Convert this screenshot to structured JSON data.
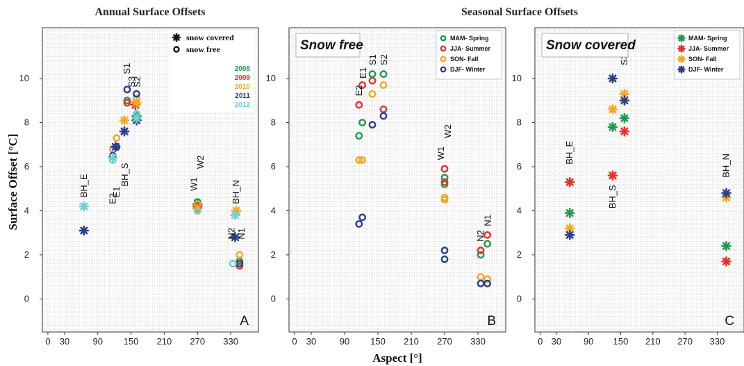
{
  "figure": {
    "title_left": "Annual Surface Offsets",
    "title_right": "Seasonal Surface Offsets",
    "ylabel": "Surface Offset [°C]",
    "xlabel": "Aspect [°]"
  },
  "colors": {
    "2008": "#1e9a4a",
    "2009": "#e8302a",
    "2010": "#f5a623",
    "2011": "#2b3d8f",
    "2012": "#6fd0d6",
    "spring": "#1e9a4a",
    "summer": "#e8302a",
    "fall": "#f5a623",
    "winter": "#2b3d8f"
  },
  "chart_data": [
    {
      "type": "scatter",
      "panel": "A",
      "title": "Annual Surface Offsets",
      "ylabel": "Surface Offset [°C]",
      "xlim": [
        -10,
        380
      ],
      "ylim": [
        -1.5,
        12.3
      ],
      "x_ticks": [
        0,
        30,
        90,
        150,
        210,
        270,
        330
      ],
      "y_ticks": [
        0,
        2,
        4,
        6,
        8,
        10
      ],
      "grid": true,
      "legend": {
        "position": "top-right",
        "markers": [
          {
            "label": "snow covered",
            "marker": "star"
          },
          {
            "label": "snow free",
            "marker": "circle"
          }
        ],
        "years": [
          {
            "label": "2008",
            "color": "#1e9a4a"
          },
          {
            "label": "2009",
            "color": "#e8302a"
          },
          {
            "label": "2010",
            "color": "#f5a623"
          },
          {
            "label": "2011",
            "color": "#2b3d8f"
          },
          {
            "label": "2012",
            "color": "#6fd0d6"
          }
        ]
      },
      "series": [
        {
          "name": "2008",
          "color": "#1e9a4a",
          "snow_free": [
            [
              143,
              9.0
            ],
            [
              270,
              4.4
            ],
            [
              334,
              1.6
            ],
            [
              346,
              1.7
            ]
          ],
          "snow_covered": [
            [
              160,
              8.3
            ],
            [
              270,
              4.3
            ]
          ]
        },
        {
          "name": "2009",
          "color": "#e8302a",
          "snow_free": [
            [
              143,
              8.9
            ],
            [
              270,
              4.1
            ],
            [
              346,
              1.5
            ]
          ],
          "snow_covered": [
            [
              158,
              8.8
            ],
            [
              270,
              4.2
            ]
          ]
        },
        {
          "name": "2010",
          "color": "#f5a623",
          "snow_free": [
            [
              117,
              6.8
            ],
            [
              124,
              7.3
            ],
            [
              160,
              9.1
            ],
            [
              270,
              4.3
            ],
            [
              346,
              2.0
            ]
          ],
          "snow_covered": [
            [
              138,
              8.1
            ],
            [
              160,
              8.9
            ],
            [
              340,
              4.0
            ],
            [
              270,
              4.1
            ]
          ]
        },
        {
          "name": "2011",
          "color": "#2b3d8f",
          "snow_free": [
            [
              117,
              6.5
            ],
            [
              124,
              6.9
            ],
            [
              143,
              9.5
            ],
            [
              160,
              9.3
            ],
            [
              346,
              1.6
            ]
          ],
          "snow_covered": [
            [
              65,
              3.1
            ],
            [
              122,
              6.9
            ],
            [
              138,
              7.6
            ],
            [
              160,
              8.1
            ],
            [
              338,
              2.8
            ]
          ]
        },
        {
          "name": "2012",
          "color": "#6fd0d6",
          "snow_free": [
            [
              117,
              6.3
            ],
            [
              160,
              8.4
            ],
            [
              270,
              4.0
            ],
            [
              334,
              1.6
            ]
          ],
          "snow_covered": [
            [
              65,
              4.2
            ],
            [
              117,
              6.4
            ],
            [
              160,
              8.2
            ],
            [
              338,
              3.8
            ]
          ]
        }
      ],
      "annotations": [
        {
          "text": "BH_E",
          "x": 65,
          "y": 4.6,
          "rotated": true
        },
        {
          "text": "E2",
          "x": 117,
          "y": 4.3,
          "rotated": true
        },
        {
          "text": "E1",
          "x": 124,
          "y": 4.6,
          "rotated": true
        },
        {
          "text": "BH_S",
          "x": 139,
          "y": 5.1,
          "rotated": true
        },
        {
          "text": "S1",
          "x": 143,
          "y": 10.2,
          "rotated": true
        },
        {
          "text": "S3",
          "x": 152,
          "y": 9.6,
          "rotated": true
        },
        {
          "text": "S2",
          "x": 162,
          "y": 9.6,
          "rotated": true
        },
        {
          "text": "W1",
          "x": 264,
          "y": 4.9,
          "rotated": true
        },
        {
          "text": "W2",
          "x": 276,
          "y": 5.9,
          "rotated": true
        },
        {
          "text": "N2",
          "x": 332,
          "y": 2.7,
          "rotated": true
        },
        {
          "text": "BH_N",
          "x": 340,
          "y": 4.3,
          "rotated": true
        },
        {
          "text": "N1",
          "x": 350,
          "y": 2.7,
          "rotated": true
        }
      ],
      "panel_letter": "A"
    },
    {
      "type": "scatter",
      "panel": "B",
      "title": "Seasonal Surface Offsets",
      "label": "Snow free",
      "xlim": [
        -10,
        380
      ],
      "ylim": [
        -1.5,
        12.3
      ],
      "x_ticks": [
        0,
        30,
        90,
        150,
        210,
        270,
        330
      ],
      "y_ticks": [
        0,
        2,
        4,
        6,
        8,
        10
      ],
      "grid": true,
      "legend": {
        "position": "top-right",
        "items": [
          {
            "label": "MAM- Spring",
            "color": "#1e9a4a",
            "marker": "circle"
          },
          {
            "label": "JJA- Summer",
            "color": "#e8302a",
            "marker": "circle"
          },
          {
            "label": "SON- Fall",
            "color": "#f5a623",
            "marker": "circle"
          },
          {
            "label": "DJF- Winter",
            "color": "#2b3d8f",
            "marker": "circle"
          }
        ]
      },
      "series": [
        {
          "name": "MAM- Spring",
          "color": "#1e9a4a",
          "marker": "circle",
          "points": [
            [
              116,
              7.4
            ],
            [
              122,
              8.0
            ],
            [
              140,
              10.2
            ],
            [
              160,
              10.2
            ],
            [
              270,
              5.5
            ],
            [
              270,
              5.2
            ],
            [
              335,
              2.0
            ],
            [
              347,
              2.5
            ]
          ]
        },
        {
          "name": "JJA- Summer",
          "color": "#e8302a",
          "marker": "circle",
          "points": [
            [
              116,
              8.8
            ],
            [
              122,
              9.7
            ],
            [
              140,
              9.9
            ],
            [
              160,
              8.6
            ],
            [
              270,
              5.9
            ],
            [
              270,
              5.3
            ],
            [
              335,
              2.2
            ],
            [
              347,
              2.9
            ]
          ]
        },
        {
          "name": "SON- Fall",
          "color": "#f5a623",
          "marker": "circle",
          "points": [
            [
              116,
              6.3
            ],
            [
              122,
              6.3
            ],
            [
              140,
              9.3
            ],
            [
              160,
              9.7
            ],
            [
              270,
              4.6
            ],
            [
              270,
              4.5
            ],
            [
              335,
              1.0
            ],
            [
              347,
              0.9
            ]
          ]
        },
        {
          "name": "DJF- Winter",
          "color": "#2b3d8f",
          "marker": "circle",
          "points": [
            [
              116,
              3.4
            ],
            [
              122,
              3.7
            ],
            [
              140,
              7.9
            ],
            [
              160,
              8.3
            ],
            [
              270,
              2.2
            ],
            [
              270,
              1.8
            ],
            [
              335,
              0.7
            ],
            [
              347,
              0.7
            ]
          ]
        }
      ],
      "annotations": [
        {
          "text": "E2",
          "x": 116,
          "y": 9.2,
          "rotated": true
        },
        {
          "text": "E1",
          "x": 124,
          "y": 10.0,
          "rotated": true
        },
        {
          "text": "S1",
          "x": 141,
          "y": 10.6,
          "rotated": true
        },
        {
          "text": "S2",
          "x": 161,
          "y": 10.6,
          "rotated": true
        },
        {
          "text": "W1",
          "x": 264,
          "y": 6.3,
          "rotated": true
        },
        {
          "text": "W2",
          "x": 276,
          "y": 7.3,
          "rotated": true
        },
        {
          "text": "N2",
          "x": 335,
          "y": 2.6,
          "rotated": true
        },
        {
          "text": "N1",
          "x": 348,
          "y": 3.3,
          "rotated": true
        }
      ],
      "panel_letter": "B"
    },
    {
      "type": "scatter",
      "panel": "C",
      "label": "Snow covered",
      "xlim": [
        -10,
        380
      ],
      "ylim": [
        -1.5,
        12.3
      ],
      "x_ticks": [
        0,
        30,
        90,
        150,
        210,
        270,
        330
      ],
      "y_ticks": [
        0,
        2,
        4,
        6,
        8,
        10
      ],
      "grid": true,
      "legend": {
        "position": "top-right",
        "items": [
          {
            "label": "MAM- Spring",
            "color": "#1e9a4a",
            "marker": "star"
          },
          {
            "label": "JJA- Summer",
            "color": "#e8302a",
            "marker": "star"
          },
          {
            "label": "SON- Fall",
            "color": "#f5a623",
            "marker": "star"
          },
          {
            "label": "DJF- Winter",
            "color": "#2b3d8f",
            "marker": "star"
          }
        ]
      },
      "series": [
        {
          "name": "MAM- Spring",
          "color": "#1e9a4a",
          "marker": "star",
          "points": [
            [
              55,
              3.9
            ],
            [
              135,
              7.8
            ],
            [
              157,
              8.2
            ],
            [
              347,
              2.4
            ]
          ]
        },
        {
          "name": "JJA- Summer",
          "color": "#e8302a",
          "marker": "star",
          "points": [
            [
              55,
              5.3
            ],
            [
              135,
              5.6
            ],
            [
              157,
              7.6
            ],
            [
              347,
              1.7
            ]
          ]
        },
        {
          "name": "SON- Fall",
          "color": "#f5a623",
          "marker": "star",
          "points": [
            [
              55,
              3.2
            ],
            [
              135,
              8.6
            ],
            [
              157,
              9.3
            ],
            [
              347,
              4.6
            ]
          ]
        },
        {
          "name": "DJF- Winter",
          "color": "#2b3d8f",
          "marker": "star",
          "points": [
            [
              55,
              2.9
            ],
            [
              135,
              10.0
            ],
            [
              157,
              9.0
            ],
            [
              347,
              4.8
            ]
          ]
        }
      ],
      "annotations": [
        {
          "text": "BH_E",
          "x": 55,
          "y": 6.1,
          "rotated": true
        },
        {
          "text": "BH_S",
          "x": 135,
          "y": 4.1,
          "rotated": true
        },
        {
          "text": "S3",
          "x": 157,
          "y": 10.6,
          "rotated": true
        },
        {
          "text": "BH_N",
          "x": 347,
          "y": 5.5,
          "rotated": true
        }
      ],
      "panel_letter": "C"
    }
  ]
}
